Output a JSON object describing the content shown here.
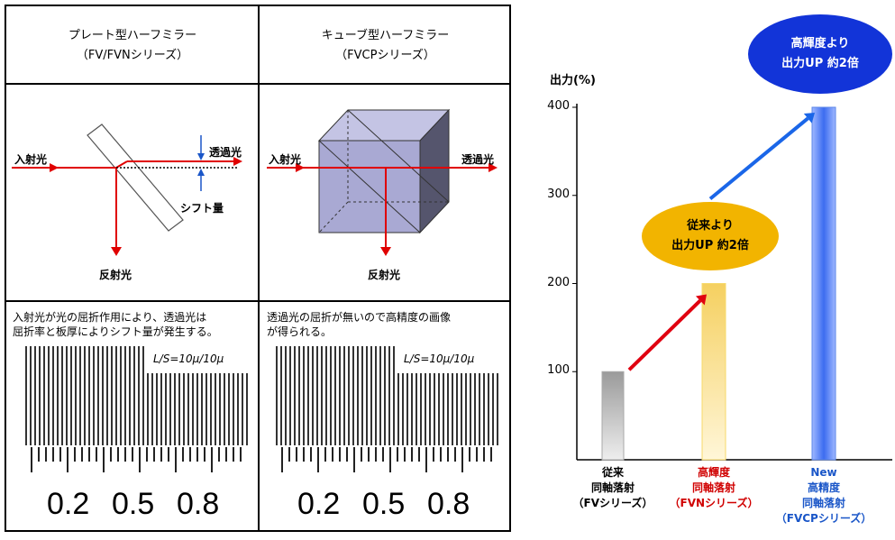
{
  "left_table": {
    "col1": {
      "title": "プレート型ハーフミラー",
      "subtitle": "（FV/FVNシリーズ）",
      "labels": {
        "incident": "入射光",
        "transmitted": "透過光",
        "shift": "シフト量",
        "reflected": "反射光"
      },
      "desc_line1": "入射光が光の屈折作用により、透過光は",
      "desc_line2": "屈折率と板厚によりシフト量が発生する。",
      "scale_ls": "L/S=10μ/10μ",
      "scale_numbers": [
        "0.2",
        "0.5",
        "0.8"
      ]
    },
    "col2": {
      "title": "キューブ型ハーフミラー",
      "subtitle": "（FVCPシリーズ）",
      "labels": {
        "incident": "入射光",
        "transmitted": "透過光",
        "reflected": "反射光"
      },
      "desc_line1": "透過光の屈折が無いので高精度の画像",
      "desc_line2": "が得られる。",
      "scale_ls": "L/S=10μ/10μ",
      "scale_numbers": [
        "0.2",
        "0.5",
        "0.8"
      ]
    }
  },
  "chart_data": {
    "type": "bar",
    "ylabel": "出力(%)",
    "ylim": [
      0,
      400
    ],
    "yticks": [
      100,
      200,
      300,
      400
    ],
    "categories": [
      {
        "lines": [
          "従来",
          "同軸落射",
          "（FVシリーズ）"
        ],
        "color": "#000000"
      },
      {
        "lines": [
          "高輝度",
          "同軸落射",
          "（FVNシリーズ）"
        ],
        "color": "#d00000"
      },
      {
        "lines": [
          "New",
          "高精度",
          "同軸落射",
          "（FVCPシリーズ）"
        ],
        "color": "#1a56c8"
      }
    ],
    "values": [
      100,
      200,
      400
    ],
    "bar_colors": [
      "#a9a9a9",
      "#f7d96a",
      "#5b86e8"
    ],
    "callouts": [
      {
        "lines": [
          "従来より",
          "出力UP 約2倍"
        ],
        "fill": "#f2b400",
        "text_color": "#000000"
      },
      {
        "lines": [
          "高輝度より",
          "出力UP 約2倍"
        ],
        "fill": "#1234d8",
        "text_color": "#ffffff"
      }
    ]
  }
}
